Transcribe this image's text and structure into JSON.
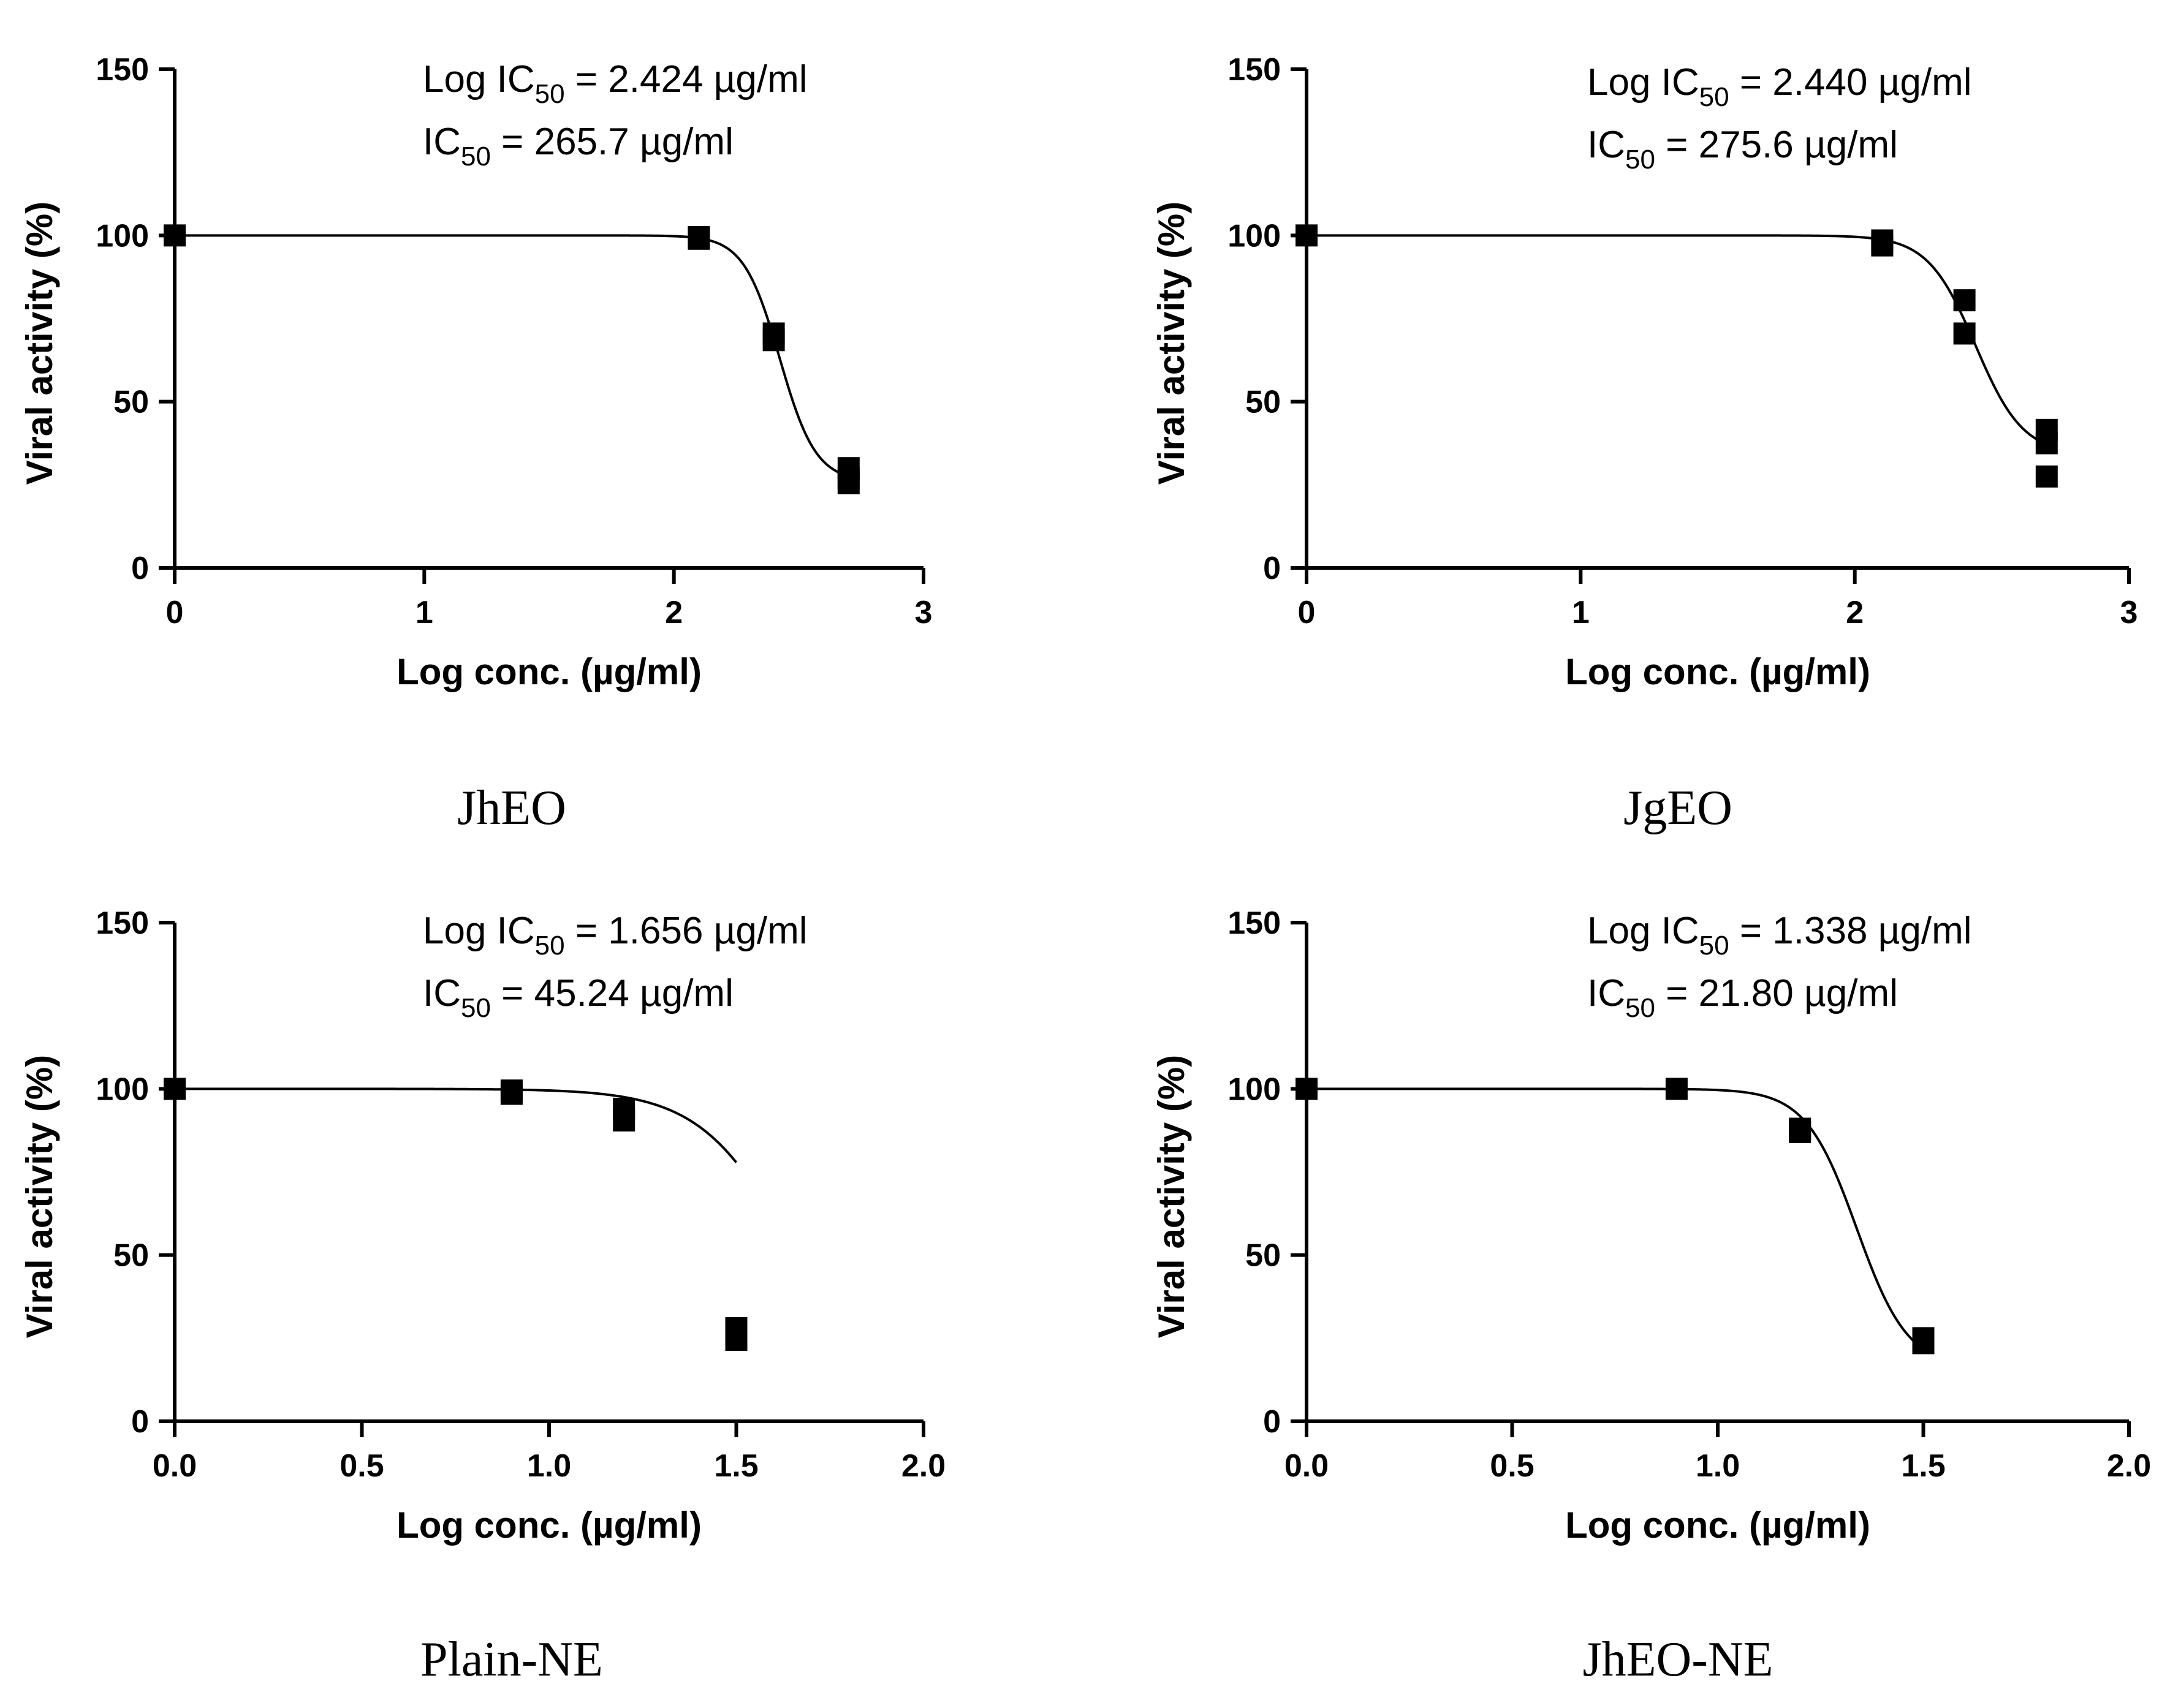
{
  "chart_data": [
    {
      "type": "scatter",
      "caption": "JhEO",
      "xlabel": "Log conc. (µg/ml)",
      "ylabel": "Viral activity (%)",
      "xlim": [
        0,
        3
      ],
      "ylim": [
        0,
        150
      ],
      "xticks": [
        0,
        1,
        2,
        3
      ],
      "xtick_labels": [
        "0",
        "1",
        "2",
        "3"
      ],
      "yticks": [
        0,
        50,
        100,
        150
      ],
      "ytick_labels": [
        "0",
        "50",
        "100",
        "150"
      ],
      "annotation": {
        "line1_prefix": "Log IC",
        "line1_sub": "50",
        "line1_suffix": " = 2.424 µg/ml",
        "line2_prefix": "IC",
        "line2_sub": "50",
        "line2_suffix": " = 265.7 µg/ml"
      },
      "points": [
        {
          "x": 0.0,
          "y": 100
        },
        {
          "x": 2.1,
          "y": 99.5
        },
        {
          "x": 2.1,
          "y": 99
        },
        {
          "x": 2.4,
          "y": 70.5
        },
        {
          "x": 2.4,
          "y": 68.5
        },
        {
          "x": 2.7,
          "y": 30
        },
        {
          "x": 2.7,
          "y": 27
        },
        {
          "x": 2.7,
          "y": 25.5
        }
      ],
      "fit": {
        "model": "sigmoid",
        "top": 100,
        "bottom": 26,
        "log_ic50": 2.424,
        "hill_slope": -6
      }
    },
    {
      "type": "scatter",
      "caption": "JgEO",
      "xlabel": "Log conc. (µg/ml)",
      "ylabel": "Viral activity (%)",
      "xlim": [
        0,
        3
      ],
      "ylim": [
        0,
        150
      ],
      "xticks": [
        0,
        1,
        2,
        3
      ],
      "xtick_labels": [
        "0",
        "1",
        "2",
        "3"
      ],
      "yticks": [
        0,
        50,
        100,
        150
      ],
      "ytick_labels": [
        "0",
        "50",
        "100",
        "150"
      ],
      "annotation": {
        "line1_prefix": "Log IC",
        "line1_sub": "50",
        "line1_suffix": " = 2.440 µg/ml",
        "line2_prefix": "IC",
        "line2_sub": "50",
        "line2_suffix": " = 275.6 µg/ml"
      },
      "points": [
        {
          "x": 0.0,
          "y": 100
        },
        {
          "x": 2.1,
          "y": 98.5
        },
        {
          "x": 2.1,
          "y": 97
        },
        {
          "x": 2.4,
          "y": 80.5
        },
        {
          "x": 2.4,
          "y": 70.5
        },
        {
          "x": 2.7,
          "y": 41.5
        },
        {
          "x": 2.7,
          "y": 37.5
        },
        {
          "x": 2.7,
          "y": 27.5
        }
      ],
      "fit": {
        "model": "sigmoid",
        "top": 100,
        "bottom": 34,
        "log_ic50": 2.44,
        "hill_slope": -5
      }
    },
    {
      "type": "scatter",
      "caption": "Plain-NE",
      "xlabel": "Log conc. (µg/ml)",
      "ylabel": "Viral activity (%)",
      "xlim": [
        0,
        2
      ],
      "ylim": [
        0,
        150
      ],
      "xticks": [
        0,
        0.5,
        1,
        1.5,
        2
      ],
      "xtick_labels": [
        "0.0",
        "0.5",
        "1.0",
        "1.5",
        "2.0"
      ],
      "yticks": [
        0,
        50,
        100,
        150
      ],
      "ytick_labels": [
        "0",
        "50",
        "100",
        "150"
      ],
      "annotation": {
        "line1_prefix": "Log IC",
        "line1_sub": "50",
        "line1_suffix": " = 1.656 µg/ml",
        "line2_prefix": "IC",
        "line2_sub": "50",
        "line2_suffix": " = 45.24 µg/ml"
      },
      "points": [
        {
          "x": 0.0,
          "y": 100
        },
        {
          "x": 0.9,
          "y": 99.5
        },
        {
          "x": 0.9,
          "y": 98.5
        },
        {
          "x": 1.2,
          "y": 94
        },
        {
          "x": 1.2,
          "y": 90.5
        },
        {
          "x": 1.5,
          "y": 28
        },
        {
          "x": 1.5,
          "y": 24.5
        }
      ],
      "fit": {
        "model": "sigmoid",
        "top": 100,
        "bottom": 0,
        "log_ic50": 1.656,
        "hill_slope": -3.5,
        "x_end": 1.5
      }
    },
    {
      "type": "scatter",
      "caption": "JhEO-NE",
      "xlabel": "Log conc. (µg/ml)",
      "ylabel": "Viral activity (%)",
      "xlim": [
        0,
        2
      ],
      "ylim": [
        0,
        150
      ],
      "xticks": [
        0,
        0.5,
        1,
        1.5,
        2
      ],
      "xtick_labels": [
        "0.0",
        "0.5",
        "1.0",
        "1.5",
        "2.0"
      ],
      "yticks": [
        0,
        50,
        100,
        150
      ],
      "ytick_labels": [
        "0",
        "50",
        "100",
        "150"
      ],
      "annotation": {
        "line1_prefix": "Log IC",
        "line1_sub": "50",
        "line1_suffix": " = 1.338 µg/ml",
        "line2_prefix": "IC",
        "line2_sub": "50",
        "line2_suffix": " = 21.80 µg/ml"
      },
      "points": [
        {
          "x": 0.0,
          "y": 100
        },
        {
          "x": 0.9,
          "y": 100
        },
        {
          "x": 1.2,
          "y": 88
        },
        {
          "x": 1.2,
          "y": 87
        },
        {
          "x": 1.5,
          "y": 25
        },
        {
          "x": 1.5,
          "y": 23.5
        }
      ],
      "fit": {
        "model": "sigmoid",
        "top": 100,
        "bottom": 16,
        "log_ic50": 1.338,
        "hill_slope": -7
      }
    }
  ]
}
